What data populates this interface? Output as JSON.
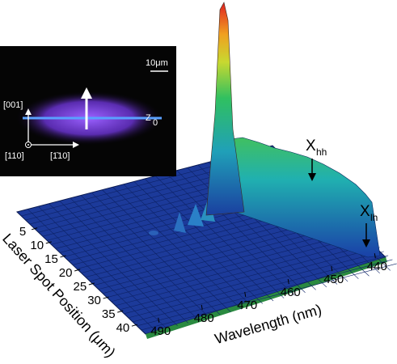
{
  "chart_data": {
    "type": "surface3d",
    "x_label": "Wavelength (nm)",
    "y_label": "Laser Spot Position (μm)",
    "xlim": [
      438,
      492
    ],
    "xticks": [
      440,
      450,
      460,
      470,
      480,
      490
    ],
    "ylim": [
      3,
      42
    ],
    "yticks": [
      5,
      10,
      15,
      20,
      25,
      30,
      35,
      40
    ],
    "annotations": [
      {
        "text": "X",
        "sub": "hh"
      },
      {
        "text": "X",
        "sub": "lh"
      }
    ]
  },
  "inset": {
    "scale_bar": "10μm",
    "vertical_axis": "[001]",
    "out_of_plane_axis": "[110]",
    "horizontal_axis": "[1̄10]",
    "wire_label": {
      "text": "Z",
      "sub": "0"
    }
  }
}
